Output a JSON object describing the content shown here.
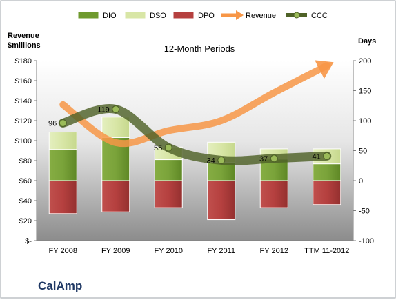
{
  "chart_data": {
    "type": "bar",
    "title": "12-Month Periods",
    "company": "CalAmp",
    "categories": [
      "FY 2008",
      "FY 2009",
      "FY 2010",
      "FY 2011",
      "FY 2012",
      "TTM 11-2012"
    ],
    "y_left": {
      "label_line1": "Revenue",
      "label_line2": "$millions",
      "range": [
        0,
        180
      ],
      "ticks": [
        0,
        20,
        40,
        60,
        80,
        100,
        120,
        140,
        160,
        180
      ],
      "tick_labels": [
        "$-",
        "$20",
        "$40",
        "$60",
        "$80",
        "$100",
        "$120",
        "$140",
        "$160",
        "$180"
      ]
    },
    "y_right": {
      "label": "Days",
      "range": [
        -100,
        200
      ],
      "ticks": [
        -100,
        -50,
        0,
        50,
        100,
        150,
        200
      ],
      "tick_labels": [
        "-100",
        "-50",
        "0",
        "50",
        "100",
        "150",
        "200"
      ]
    },
    "series": [
      {
        "name": "DIO",
        "axis": "days",
        "values": [
          52,
          72,
          35,
          30,
          36,
          28
        ],
        "color": "#6f9a2e"
      },
      {
        "name": "DSO",
        "axis": "days",
        "values": [
          29,
          34,
          21,
          34,
          17,
          25
        ],
        "color": "#d8e6a6"
      },
      {
        "name": "DPO",
        "axis": "days",
        "values": [
          -55,
          -52,
          -45,
          -65,
          -45,
          -40
        ],
        "color": "#b5403f"
      },
      {
        "name": "Revenue",
        "axis": "revenue",
        "values": [
          136,
          98,
          110,
          120,
          148,
          175
        ],
        "color": "#f79646"
      },
      {
        "name": "CCC",
        "axis": "days",
        "values": [
          96,
          119,
          55,
          34,
          37,
          41
        ],
        "color": "#4f6228"
      }
    ],
    "ccc_labels": [
      "96",
      "119",
      "55",
      "34",
      "37",
      "41"
    ],
    "grid": false,
    "legend": "top"
  }
}
